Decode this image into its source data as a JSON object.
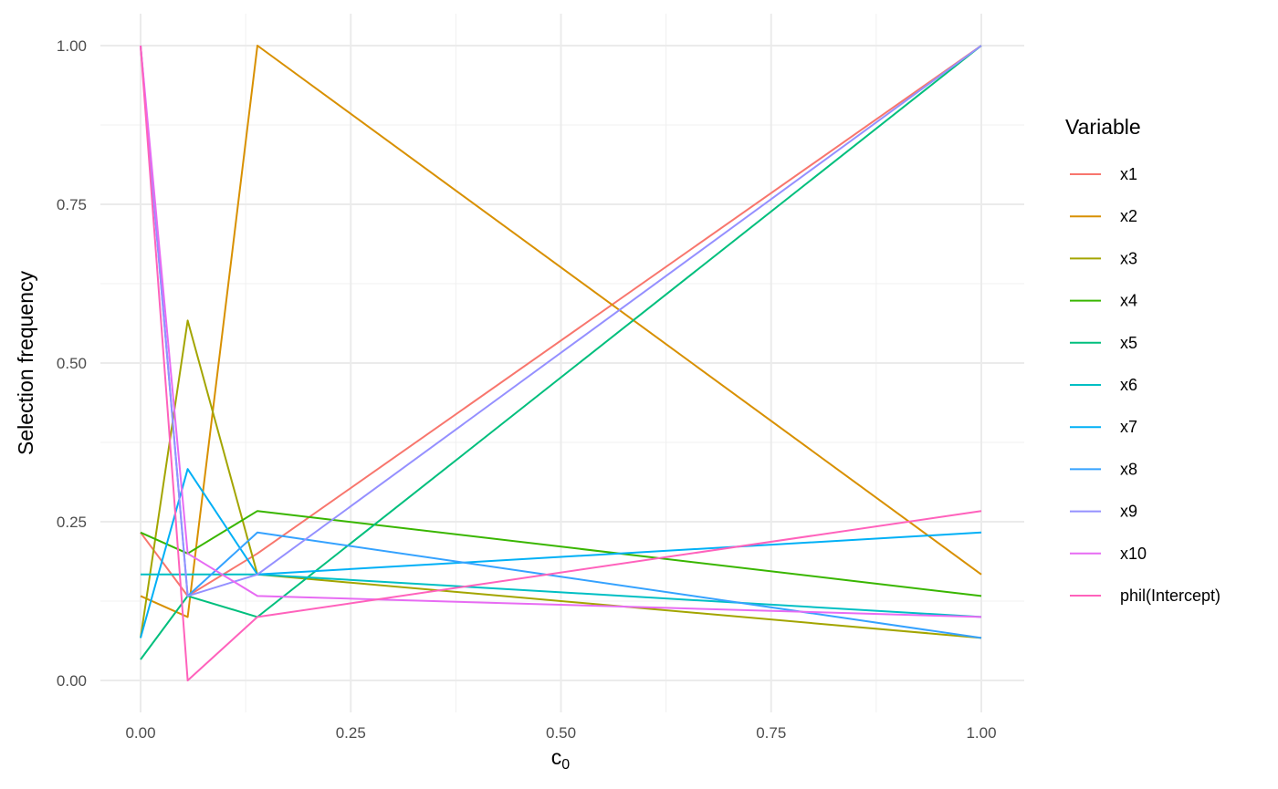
{
  "chart_data": {
    "type": "line",
    "title": "",
    "xlabel": "c",
    "xlabel_subscript": "0",
    "ylabel": "Selection frequency",
    "xlim": [
      0,
      1
    ],
    "ylim": [
      0,
      1
    ],
    "x_ticks": [
      "0.00",
      "0.25",
      "0.50",
      "0.75",
      "1.00"
    ],
    "y_ticks": [
      "0.00",
      "0.25",
      "0.50",
      "0.75",
      "1.00"
    ],
    "grid": true,
    "legend_title": "Variable",
    "legend_position": "right",
    "x": [
      0,
      0.056,
      0.139,
      1
    ],
    "series": [
      {
        "name": "x1",
        "color": "#F8766D",
        "values": [
          0.233,
          0.133,
          0.2,
          1.0
        ]
      },
      {
        "name": "x2",
        "color": "#D89000",
        "values": [
          0.133,
          0.1,
          1.0,
          0.167
        ]
      },
      {
        "name": "x3",
        "color": "#A3A500",
        "values": [
          0.067,
          0.567,
          0.167,
          0.067
        ]
      },
      {
        "name": "x4",
        "color": "#39B600",
        "values": [
          0.233,
          0.2,
          0.267,
          0.133
        ]
      },
      {
        "name": "x5",
        "color": "#00BF7D",
        "values": [
          0.033,
          0.133,
          0.1,
          1.0
        ]
      },
      {
        "name": "x6",
        "color": "#00BFC4",
        "values": [
          0.167,
          0.167,
          0.167,
          0.1
        ]
      },
      {
        "name": "x7",
        "color": "#00B0F6",
        "values": [
          0.067,
          0.333,
          0.167,
          0.233
        ]
      },
      {
        "name": "x8",
        "color": "#35A2FF",
        "values": [
          1.0,
          0.133,
          0.233,
          0.067
        ]
      },
      {
        "name": "x9",
        "color": "#9590FF",
        "values": [
          1.0,
          0.133,
          0.167,
          1.0
        ]
      },
      {
        "name": "x10",
        "color": "#E76BF3",
        "values": [
          1.0,
          0.2,
          0.133,
          0.1
        ]
      },
      {
        "name": "phil(Intercept)",
        "color": "#FF62BC",
        "values": [
          1.0,
          0.0,
          0.1,
          0.267
        ]
      }
    ]
  }
}
